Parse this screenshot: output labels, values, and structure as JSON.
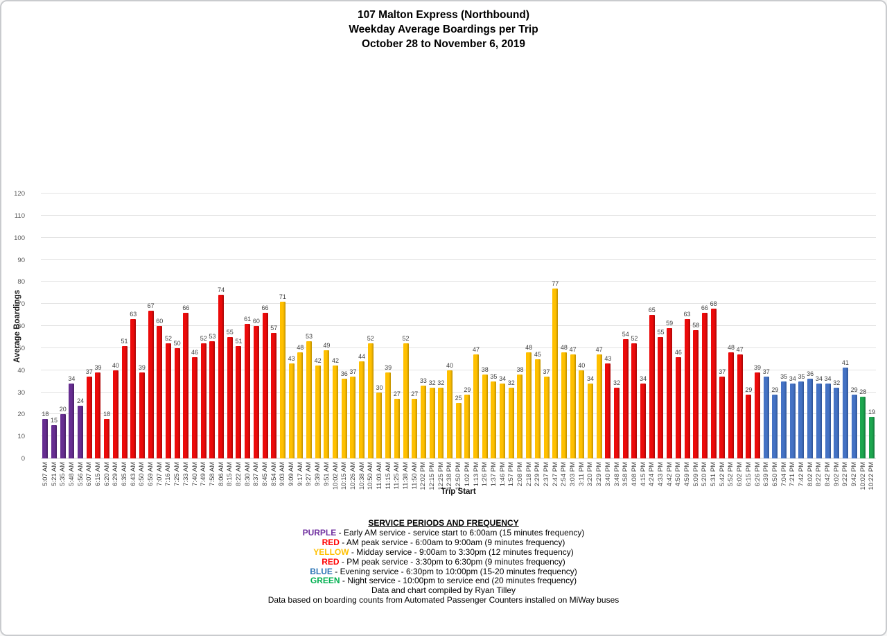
{
  "title": {
    "line1": "107 Malton Express (Northbound)",
    "line2": "Weekday Average Boardings per Trip",
    "line3": "October 28 to November 6, 2019"
  },
  "chart_data": {
    "type": "bar",
    "title": "107 Malton Express (Northbound) Weekday Average Boardings per Trip, October 28 to November 6, 2019",
    "xlabel": "Trip Start",
    "ylabel": "Average Boardings",
    "ylim": [
      0,
      120
    ],
    "ytick_step": 10,
    "grid": true,
    "legend_position": "bottom",
    "categories": [
      "5:07 AM",
      "5:21 AM",
      "5:35 AM",
      "5:48 AM",
      "5:56 AM",
      "6:07 AM",
      "6:15 AM",
      "6:20 AM",
      "6:29 AM",
      "6:35 AM",
      "6:43 AM",
      "6:50 AM",
      "6:59 AM",
      "7:07 AM",
      "7:16 AM",
      "7:25 AM",
      "7:33 AM",
      "7:40 AM",
      "7:49 AM",
      "7:58 AM",
      "8:06 AM",
      "8:15 AM",
      "8:22 AM",
      "8:30 AM",
      "8:37 AM",
      "8:45 AM",
      "8:54 AM",
      "9:03 AM",
      "9:09 AM",
      "9:17 AM",
      "9:27 AM",
      "9:39 AM",
      "9:51 AM",
      "10:02 AM",
      "10:15 AM",
      "10:26 AM",
      "10:38 AM",
      "10:50 AM",
      "11:03 AM",
      "11:15 AM",
      "11:25 AM",
      "11:38 AM",
      "11:50 AM",
      "12:02 PM",
      "12:15 PM",
      "12:25 PM",
      "12:38 PM",
      "12:50 PM",
      "1:02 PM",
      "1:13 PM",
      "1:26 PM",
      "1:37 PM",
      "1:46 PM",
      "1:57 PM",
      "2:08 PM",
      "2:18 PM",
      "2:29 PM",
      "2:37 PM",
      "2:47 PM",
      "2:54 PM",
      "3:03 PM",
      "3:11 PM",
      "3:20 PM",
      "3:29 PM",
      "3:40 PM",
      "3:48 PM",
      "3:58 PM",
      "4:08 PM",
      "4:15 PM",
      "4:24 PM",
      "4:33 PM",
      "4:42 PM",
      "4:50 PM",
      "4:59 PM",
      "5:09 PM",
      "5:20 PM",
      "5:31 PM",
      "5:42 PM",
      "5:52 PM",
      "6:02 PM",
      "6:15 PM",
      "6:26 PM",
      "6:39 PM",
      "6:50 PM",
      "7:04 PM",
      "7:21 PM",
      "7:42 PM",
      "8:02 PM",
      "8:22 PM",
      "8:42 PM",
      "9:02 PM",
      "9:22 PM",
      "9:42 PM",
      "10:02 PM",
      "10:22 PM"
    ],
    "values": [
      18,
      15,
      20,
      34,
      24,
      37,
      39,
      18,
      40,
      51,
      63,
      39,
      67,
      60,
      52,
      50,
      66,
      46,
      52,
      53,
      74,
      55,
      51,
      61,
      60,
      66,
      57,
      71,
      43,
      48,
      53,
      42,
      49,
      42,
      36,
      37,
      44,
      52,
      30,
      39,
      27,
      52,
      27,
      33,
      32,
      32,
      40,
      25,
      29,
      47,
      38,
      35,
      34,
      32,
      38,
      48,
      45,
      37,
      77,
      48,
      47,
      40,
      34,
      47,
      43,
      32,
      54,
      52,
      34,
      65,
      55,
      59,
      46,
      63,
      58,
      66,
      68,
      37,
      48,
      47,
      29,
      39,
      37,
      29,
      35,
      34,
      35,
      36,
      34,
      34,
      32,
      41,
      29,
      28,
      19
    ],
    "segments": [
      {
        "period": "Early AM service",
        "count": 5,
        "color": "#662D91",
        "shade": "#471F66"
      },
      {
        "period": "AM peak service",
        "count": 22,
        "color": "#EC0A0A",
        "shade": "#A60707"
      },
      {
        "period": "Midday service",
        "count": 37,
        "color": "#FFC000",
        "shade": "#BF9000"
      },
      {
        "period": "PM peak service",
        "count": 18,
        "color": "#EC0A0A",
        "shade": "#A60707"
      },
      {
        "period": "Evening service",
        "count": 11,
        "color": "#4472C4",
        "shade": "#2F5496"
      },
      {
        "period": "Night service",
        "count": 2,
        "color": "#1CA64E",
        "shade": "#127036"
      }
    ]
  },
  "legend": {
    "heading": "SERVICE PERIODS AND FREQUENCY",
    "entries": [
      {
        "keyword": "PURPLE",
        "color": "#7030A0",
        "text": " - Early AM service - service start to 6:00am (15 minutes frequency)"
      },
      {
        "keyword": "RED",
        "color": "#FF0000",
        "text": " - AM peak service - 6:00am to 9:00am (9 minutes frequency)"
      },
      {
        "keyword": "YELLOW",
        "color": "#FFC000",
        "text": " - Midday service - 9:00am to 3:30pm (12 minutes frequency)"
      },
      {
        "keyword": "RED",
        "color": "#FF0000",
        "text": " - PM peak service - 3:30pm to 6:30pm (9 minutes frequency)"
      },
      {
        "keyword": "BLUE",
        "color": "#2E75B6",
        "text": " - Evening service - 6:30pm to 10:00pm (15-20 minutes frequency)"
      },
      {
        "keyword": "GREEN",
        "color": "#00B050",
        "text": " - Night service - 10:00pm to service end (20 minutes frequency)"
      }
    ],
    "credits": [
      "Data and chart compiled by Ryan Tilley",
      "Data based on boarding counts from Automated Passenger Counters installed on MiWay buses"
    ]
  }
}
